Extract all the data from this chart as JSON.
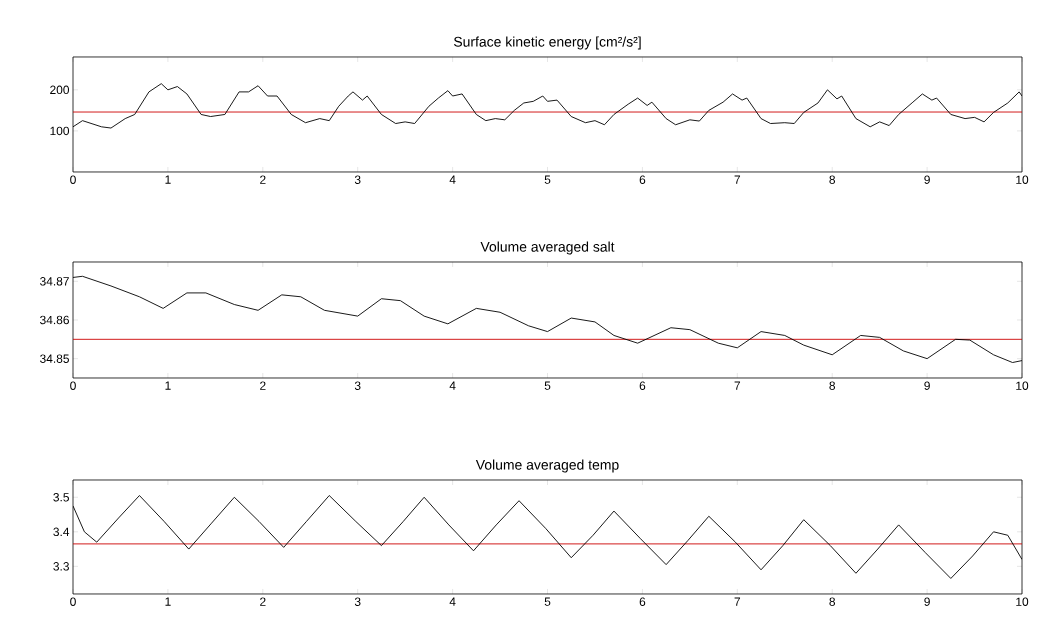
{
  "chart_data": [
    {
      "type": "line",
      "title": "Surface kinetic energy [cm²/s²]",
      "color": "#000000",
      "x": [
        0,
        0.1,
        0.3,
        0.4,
        0.55,
        0.65,
        0.8,
        0.93,
        1.0,
        1.1,
        1.2,
        1.35,
        1.45,
        1.6,
        1.75,
        1.85,
        1.95,
        2.05,
        2.15,
        2.3,
        2.45,
        2.6,
        2.7,
        2.8,
        2.9,
        2.95,
        3.05,
        3.1,
        3.25,
        3.4,
        3.5,
        3.6,
        3.75,
        3.85,
        3.95,
        4.0,
        4.1,
        4.25,
        4.35,
        4.45,
        4.55,
        4.65,
        4.75,
        4.85,
        4.95,
        5.0,
        5.1,
        5.25,
        5.4,
        5.5,
        5.6,
        5.7,
        5.85,
        5.95,
        6.05,
        6.1,
        6.25,
        6.35,
        6.5,
        6.6,
        6.7,
        6.85,
        6.95,
        7.05,
        7.1,
        7.25,
        7.35,
        7.5,
        7.6,
        7.7,
        7.85,
        7.95,
        8.05,
        8.1,
        8.25,
        8.4,
        8.5,
        8.6,
        8.7,
        8.85,
        8.95,
        9.05,
        9.1,
        9.25,
        9.4,
        9.5,
        9.6,
        9.7,
        9.85,
        9.97,
        10
      ],
      "values": [
        110,
        125,
        110,
        107,
        130,
        140,
        195,
        215,
        200,
        208,
        190,
        140,
        135,
        140,
        195,
        195,
        210,
        185,
        185,
        140,
        120,
        130,
        125,
        160,
        185,
        195,
        175,
        185,
        140,
        118,
        122,
        118,
        160,
        180,
        198,
        185,
        190,
        140,
        125,
        130,
        127,
        150,
        168,
        172,
        185,
        172,
        175,
        135,
        120,
        125,
        115,
        140,
        165,
        180,
        162,
        170,
        130,
        115,
        127,
        124,
        150,
        170,
        190,
        175,
        180,
        130,
        118,
        120,
        118,
        145,
        168,
        200,
        178,
        185,
        130,
        110,
        122,
        113,
        140,
        170,
        190,
        175,
        180,
        140,
        130,
        133,
        122,
        145,
        168,
        195,
        185
      ],
      "xlim": [
        0,
        10
      ],
      "xticks": [
        0,
        1,
        2,
        3,
        4,
        5,
        6,
        7,
        8,
        9,
        10
      ],
      "ylim": [
        0,
        280
      ],
      "yticks": [
        100,
        200
      ],
      "ref_lines": [
        {
          "axis": "y",
          "value": 146,
          "color": "#cc0000"
        }
      ]
    },
    {
      "type": "line",
      "title": "Volume averaged salt",
      "color": "#000000",
      "x": [
        0,
        0.1,
        0.4,
        0.7,
        0.95,
        1.2,
        1.4,
        1.7,
        1.95,
        2.2,
        2.4,
        2.65,
        3.0,
        3.25,
        3.45,
        3.7,
        3.95,
        4.25,
        4.5,
        4.8,
        5.0,
        5.25,
        5.5,
        5.7,
        5.95,
        6.3,
        6.5,
        6.8,
        7.0,
        7.25,
        7.5,
        7.7,
        8.0,
        8.3,
        8.5,
        8.75,
        9.0,
        9.3,
        9.45,
        9.7,
        9.9,
        10
      ],
      "values": [
        34.871,
        34.8713,
        34.8688,
        34.866,
        34.863,
        34.867,
        34.867,
        34.864,
        34.8625,
        34.8665,
        34.866,
        34.8625,
        34.861,
        34.8655,
        34.865,
        34.861,
        34.859,
        34.863,
        34.862,
        34.8585,
        34.857,
        34.8605,
        34.8595,
        34.856,
        34.854,
        34.858,
        34.8575,
        34.854,
        34.8528,
        34.857,
        34.856,
        34.8535,
        34.851,
        34.856,
        34.8555,
        34.852,
        34.85,
        34.855,
        34.8548,
        34.851,
        34.849,
        34.8495
      ],
      "xlim": [
        0,
        10
      ],
      "xticks": [
        0,
        1,
        2,
        3,
        4,
        5,
        6,
        7,
        8,
        9,
        10
      ],
      "ylim": [
        34.845,
        34.875
      ],
      "yticks": [
        34.85,
        34.86,
        34.87
      ],
      "ref_lines": [
        {
          "axis": "y",
          "value": 34.855,
          "color": "#cc0000"
        }
      ]
    },
    {
      "type": "line",
      "title": "Volume averaged temp",
      "color": "#000000",
      "x": [
        0,
        0.12,
        0.25,
        0.48,
        0.7,
        0.96,
        1.22,
        1.46,
        1.7,
        1.96,
        2.22,
        2.46,
        2.7,
        2.98,
        3.25,
        3.48,
        3.7,
        3.96,
        4.22,
        4.46,
        4.7,
        4.98,
        5.25,
        5.48,
        5.7,
        5.98,
        6.25,
        6.48,
        6.7,
        6.98,
        7.25,
        7.48,
        7.7,
        7.98,
        8.25,
        8.48,
        8.7,
        8.98,
        9.25,
        9.48,
        9.7,
        9.85,
        10
      ],
      "values": [
        3.475,
        3.4,
        3.37,
        3.44,
        3.505,
        3.43,
        3.35,
        3.425,
        3.5,
        3.43,
        3.355,
        3.43,
        3.505,
        3.43,
        3.36,
        3.43,
        3.5,
        3.42,
        3.345,
        3.42,
        3.49,
        3.41,
        3.325,
        3.39,
        3.46,
        3.38,
        3.305,
        3.375,
        3.445,
        3.37,
        3.29,
        3.36,
        3.435,
        3.36,
        3.28,
        3.35,
        3.42,
        3.34,
        3.265,
        3.33,
        3.4,
        3.39,
        3.32
      ],
      "xlim": [
        0,
        10
      ],
      "xticks": [
        0,
        1,
        2,
        3,
        4,
        5,
        6,
        7,
        8,
        9,
        10
      ],
      "ylim": [
        3.22,
        3.55
      ],
      "yticks": [
        3.3,
        3.4,
        3.5
      ],
      "ref_lines": [
        {
          "axis": "y",
          "value": 3.365,
          "color": "#cc0000"
        }
      ]
    }
  ]
}
